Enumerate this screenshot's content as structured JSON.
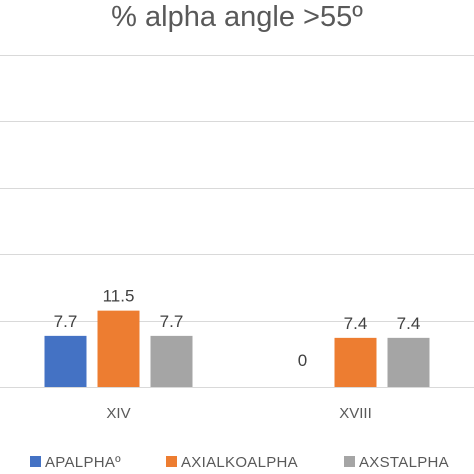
{
  "chart_data": {
    "type": "bar",
    "title": "% alpha angle >55º",
    "categories": [
      "XIV",
      "XVIII"
    ],
    "series": [
      {
        "name": "APALPHAº",
        "values": [
          7.7,
          0
        ],
        "color": "#4472C4"
      },
      {
        "name": "AXIALKOALPHA",
        "values": [
          11.5,
          7.4
        ],
        "color": "#ED7D31"
      },
      {
        "name": "AXSTALPHA",
        "values": [
          7.7,
          7.4
        ],
        "color": "#A5A5A5"
      }
    ],
    "data_labels": [
      [
        "7.7",
        "11.5",
        "7.7"
      ],
      [
        "0",
        "7.4",
        "7.4"
      ]
    ],
    "ylim": [
      0,
      70
    ],
    "grid": true,
    "legend_position": "bottom",
    "colors": {
      "gridline": "#d9d9d9",
      "text": "#595959",
      "label": "#404040"
    }
  }
}
